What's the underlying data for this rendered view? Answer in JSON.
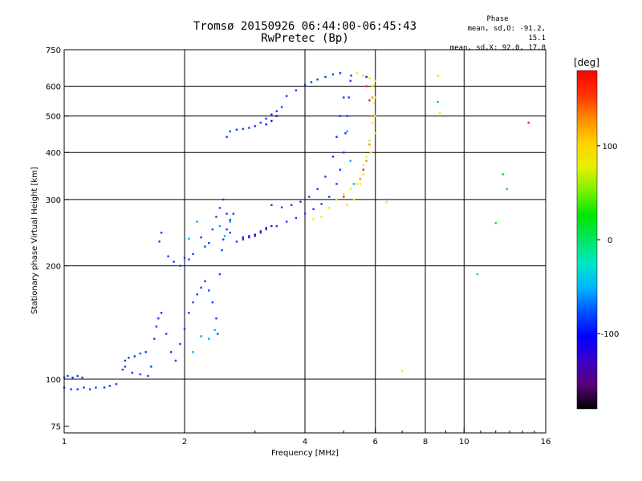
{
  "chart_data": {
    "type": "scatter",
    "title": "Tromsø 20150926 06:44:00-06:45:43",
    "subtitle": "RwPretec (Bp)",
    "phase_stats": {
      "header": "Phase",
      "line_o": "mean, sd,O: -91.2, 15.1",
      "line_x": "mean, sd,X:  92.0, 17.8"
    },
    "xlabel": "Frequency [MHz]",
    "ylabel": "Stationary phase Virtual Height [km]",
    "x_scale": "log",
    "y_scale": "log",
    "xlim": [
      1,
      16
    ],
    "ylim": [
      72,
      750
    ],
    "x_ticks": [
      1,
      2,
      4,
      6,
      8,
      10,
      16
    ],
    "y_ticks": [
      75,
      100,
      200,
      300,
      400,
      500,
      600,
      750
    ],
    "grid_x": [
      2,
      4,
      6,
      8,
      10
    ],
    "grid_y": [
      100,
      200,
      300,
      400,
      500,
      600
    ],
    "colorbar": {
      "label": "[deg]",
      "min": -180,
      "max": 180,
      "ticks": [
        100,
        0,
        -100
      ],
      "colors": [
        "#000000",
        "#5a007a",
        "#3b00c8",
        "#0000ff",
        "#0050ff",
        "#00b4ff",
        "#00e6c8",
        "#00e664",
        "#00e600",
        "#78f000",
        "#e6f000",
        "#ffd200",
        "#ff8c00",
        "#ff3200",
        "#ff0000"
      ]
    },
    "series": [
      {
        "color": "#0a3cff",
        "points": [
          [
            1.0,
            101
          ],
          [
            1.02,
            102
          ],
          [
            1.05,
            101
          ],
          [
            1.08,
            102
          ],
          [
            1.11,
            101
          ],
          [
            1.0,
            95
          ],
          [
            1.04,
            94
          ],
          [
            1.08,
            94
          ],
          [
            1.12,
            95
          ],
          [
            1.16,
            94
          ],
          [
            1.2,
            95
          ],
          [
            1.26,
            95
          ],
          [
            1.3,
            96
          ],
          [
            1.35,
            97
          ],
          [
            1.4,
            106
          ],
          [
            1.42,
            112
          ],
          [
            1.45,
            114
          ],
          [
            1.5,
            115
          ],
          [
            1.55,
            117
          ],
          [
            1.6,
            118
          ],
          [
            1.42,
            108
          ],
          [
            1.48,
            104
          ],
          [
            1.55,
            103
          ],
          [
            1.62,
            102
          ],
          [
            1.65,
            108
          ],
          [
            1.68,
            128
          ],
          [
            1.7,
            138
          ],
          [
            1.72,
            145
          ],
          [
            1.75,
            150
          ],
          [
            1.8,
            132
          ],
          [
            1.85,
            118
          ],
          [
            1.9,
            112
          ],
          [
            1.95,
            124
          ],
          [
            2.0,
            136
          ],
          [
            2.05,
            150
          ],
          [
            2.1,
            160
          ],
          [
            2.15,
            168
          ],
          [
            2.2,
            175
          ],
          [
            2.25,
            182
          ],
          [
            2.3,
            172
          ],
          [
            2.35,
            160
          ],
          [
            2.4,
            145
          ],
          [
            2.42,
            132
          ],
          [
            2.45,
            190
          ],
          [
            2.48,
            220
          ],
          [
            2.5,
            235
          ],
          [
            2.55,
            250
          ],
          [
            2.6,
            265
          ],
          [
            2.65,
            275
          ],
          [
            1.82,
            212
          ],
          [
            1.88,
            205
          ],
          [
            1.95,
            200
          ],
          [
            2.0,
            210
          ],
          [
            2.05,
            208
          ],
          [
            2.1,
            215
          ],
          [
            2.2,
            238
          ],
          [
            2.25,
            225
          ],
          [
            2.3,
            230
          ],
          [
            2.35,
            250
          ],
          [
            2.4,
            270
          ],
          [
            2.45,
            285
          ],
          [
            2.5,
            300
          ],
          [
            2.55,
            275
          ],
          [
            2.6,
            245
          ],
          [
            2.7,
            232
          ],
          [
            2.8,
            235
          ],
          [
            2.9,
            238
          ],
          [
            3.0,
            240
          ],
          [
            3.1,
            245
          ],
          [
            3.2,
            250
          ],
          [
            3.4,
            255
          ],
          [
            3.6,
            262
          ],
          [
            3.8,
            268
          ],
          [
            4.0,
            275
          ],
          [
            4.2,
            283
          ],
          [
            4.4,
            292
          ],
          [
            4.6,
            305
          ],
          [
            4.8,
            330
          ],
          [
            4.9,
            360
          ],
          [
            5.0,
            400
          ],
          [
            5.05,
            450
          ],
          [
            5.1,
            500
          ],
          [
            5.15,
            560
          ],
          [
            5.2,
            620
          ],
          [
            5.22,
            640
          ],
          [
            3.3,
            290
          ],
          [
            3.5,
            286
          ],
          [
            3.7,
            290
          ],
          [
            3.9,
            296
          ],
          [
            4.1,
            305
          ],
          [
            4.3,
            320
          ],
          [
            4.5,
            345
          ],
          [
            4.7,
            390
          ],
          [
            4.8,
            440
          ],
          [
            4.9,
            500
          ],
          [
            5.0,
            560
          ],
          [
            4.15,
            615
          ],
          [
            4.3,
            625
          ],
          [
            4.5,
            635
          ],
          [
            4.7,
            645
          ],
          [
            4.9,
            650
          ],
          [
            3.6,
            565
          ],
          [
            3.8,
            585
          ],
          [
            4.0,
            605
          ],
          [
            2.9,
            465
          ],
          [
            3.0,
            470
          ],
          [
            3.1,
            480
          ],
          [
            3.2,
            492
          ],
          [
            3.3,
            505
          ],
          [
            3.4,
            515
          ],
          [
            3.5,
            528
          ],
          [
            2.55,
            440
          ],
          [
            2.6,
            455
          ],
          [
            2.7,
            460
          ],
          [
            2.8,
            462
          ],
          [
            1.75,
            245
          ],
          [
            1.73,
            232
          ]
        ]
      },
      {
        "color": "#00aaff",
        "points": [
          [
            2.1,
            118
          ],
          [
            2.2,
            130
          ],
          [
            2.3,
            128
          ],
          [
            2.38,
            135
          ],
          [
            2.45,
            255
          ],
          [
            2.52,
            240
          ],
          [
            2.6,
            262
          ],
          [
            2.05,
            236
          ],
          [
            2.15,
            262
          ],
          [
            5.1,
            455
          ],
          [
            5.2,
            380
          ],
          [
            5.3,
            330
          ],
          [
            6.4,
            300
          ]
        ]
      },
      {
        "color": "#3a00c0",
        "points": [
          [
            3.2,
            475
          ],
          [
            3.3,
            485
          ],
          [
            3.4,
            500
          ],
          [
            2.8,
            238
          ],
          [
            2.9,
            240
          ],
          [
            3.0,
            242
          ],
          [
            3.1,
            247
          ],
          [
            3.2,
            252
          ],
          [
            3.3,
            255
          ],
          [
            5.6,
            640
          ],
          [
            5.7,
            635
          ]
        ]
      },
      {
        "color": "#e6f000",
        "points": [
          [
            4.6,
            285
          ],
          [
            4.8,
            300
          ],
          [
            5.0,
            310
          ],
          [
            5.2,
            320
          ],
          [
            5.4,
            330
          ],
          [
            5.6,
            350
          ],
          [
            5.7,
            390
          ],
          [
            5.8,
            430
          ],
          [
            5.9,
            480
          ],
          [
            5.95,
            540
          ],
          [
            5.9,
            600
          ],
          [
            5.8,
            630
          ],
          [
            5.6,
            640
          ],
          [
            5.4,
            650
          ],
          [
            4.4,
            270
          ],
          [
            4.2,
            266
          ],
          [
            6.0,
            620
          ],
          [
            6.0,
            560
          ],
          [
            6.0,
            500
          ],
          [
            6.0,
            450
          ],
          [
            5.85,
            400
          ],
          [
            5.6,
            370
          ],
          [
            5.5,
            330
          ],
          [
            5.3,
            300
          ],
          [
            5.1,
            290
          ],
          [
            8.6,
            640
          ],
          [
            8.7,
            510
          ],
          [
            7.0,
            105
          ],
          [
            6.4,
            295
          ]
        ]
      },
      {
        "color": "#ff8c00",
        "points": [
          [
            5.5,
            340
          ],
          [
            5.7,
            380
          ],
          [
            5.8,
            420
          ],
          [
            5.85,
            500
          ],
          [
            5.9,
            560
          ],
          [
            5.95,
            600
          ]
        ]
      },
      {
        "color": "#ff2000",
        "points": [
          [
            5.6,
            360
          ],
          [
            5.8,
            550
          ],
          [
            5.7,
            600
          ],
          [
            5.0,
            305
          ],
          [
            14.5,
            480
          ]
        ]
      },
      {
        "color": "#00e600",
        "points": [
          [
            10.8,
            190
          ],
          [
            8.6,
            545
          ],
          [
            12.5,
            350
          ],
          [
            12.8,
            320
          ],
          [
            12.0,
            260
          ]
        ]
      }
    ]
  }
}
